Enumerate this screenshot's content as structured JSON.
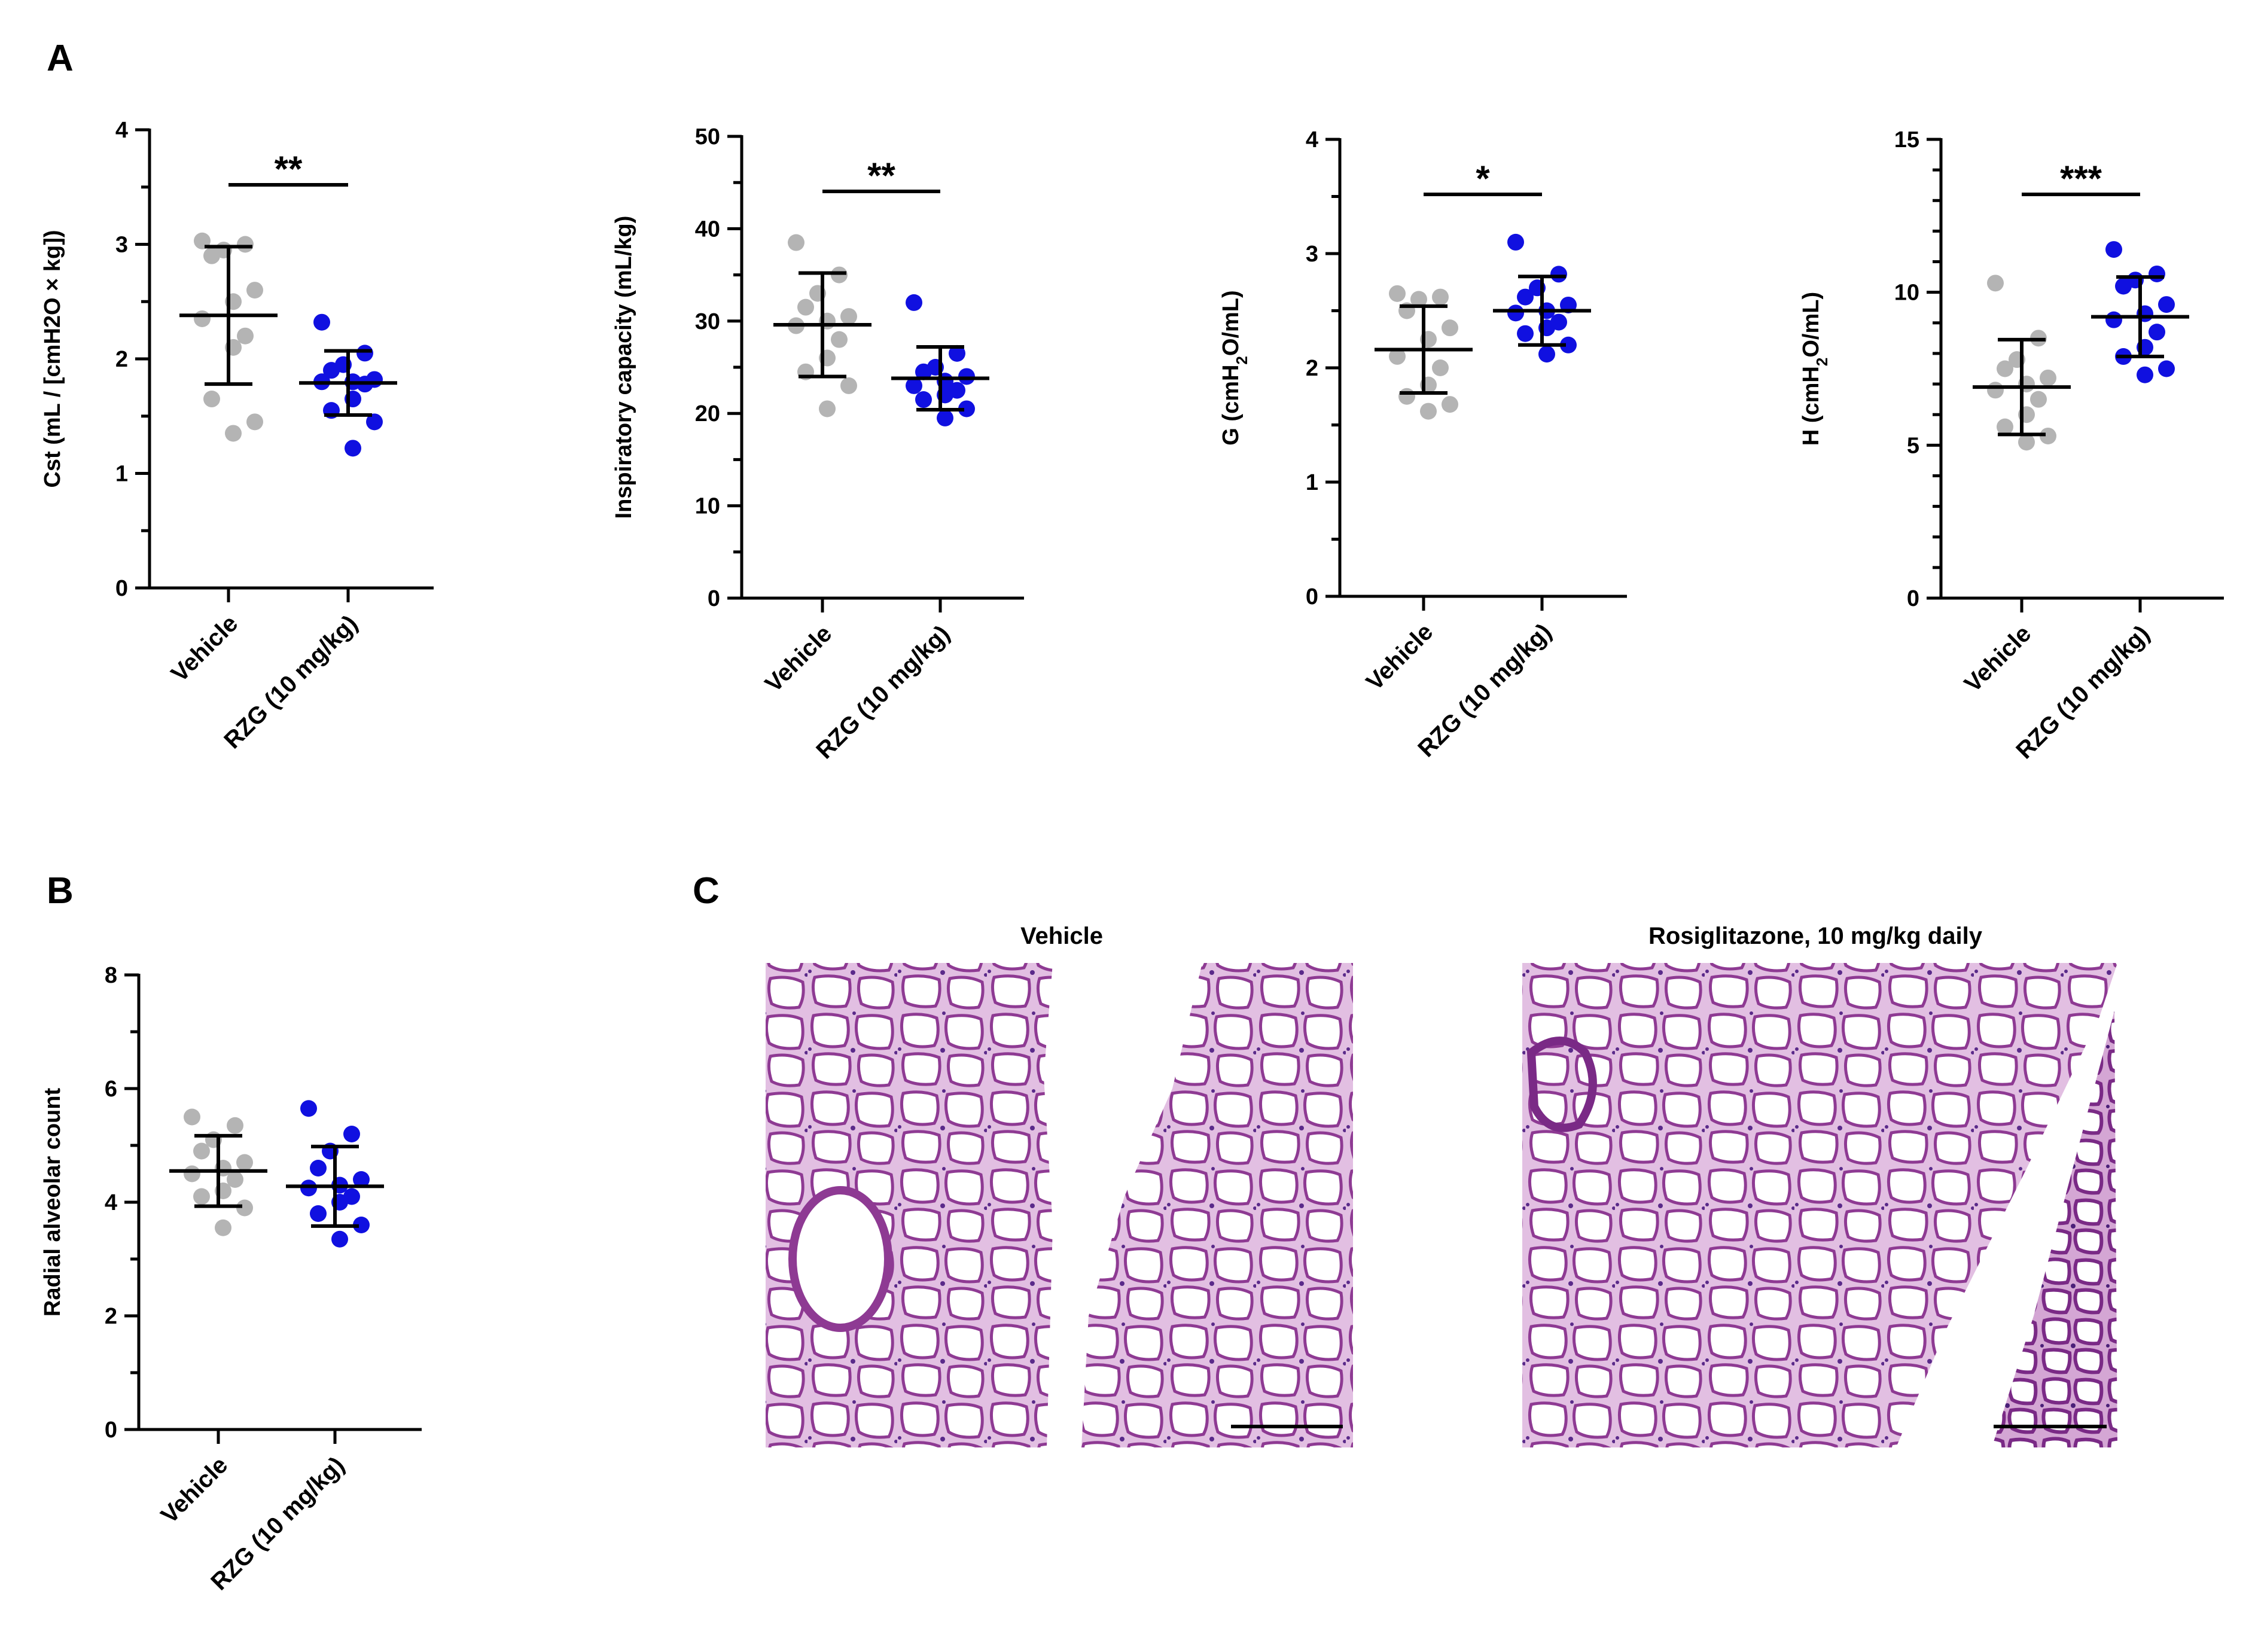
{
  "panels": {
    "A": "A",
    "B": "B",
    "C": "C"
  },
  "colors": {
    "vehicle": "#b4b4b4",
    "rzg": "#1010e0",
    "axis": "#000000"
  },
  "chart_data": [
    {
      "type": "scatter",
      "panel": "A",
      "ylabel": "Cst (mL / [cmH2O × kg])",
      "ylim": [
        0,
        4
      ],
      "yticks": [
        0,
        1,
        2,
        3,
        4
      ],
      "ytick_labels": [
        "0",
        "1",
        "2",
        "3",
        "4"
      ],
      "minor_per_major": 2,
      "categories": [
        "Vehicle",
        "RZG (10 mg/kg)"
      ],
      "significance": "**",
      "series": [
        {
          "name": "Vehicle",
          "mean": 2.38,
          "sd": 0.6,
          "values": [
            3.03,
            3.0,
            2.95,
            2.9,
            2.6,
            2.5,
            2.35,
            2.2,
            2.1,
            1.65,
            1.45,
            1.35
          ]
        },
        {
          "name": "RZG (10 mg/kg)",
          "mean": 1.79,
          "sd": 0.28,
          "values": [
            2.32,
            2.05,
            1.95,
            1.9,
            1.82,
            1.8,
            1.8,
            1.78,
            1.65,
            1.55,
            1.45,
            1.22
          ]
        }
      ]
    },
    {
      "type": "scatter",
      "panel": "A",
      "ylabel": "Inspiratory capacity (mL/kg)",
      "ylim": [
        0,
        50
      ],
      "yticks": [
        0,
        10,
        20,
        30,
        40,
        50
      ],
      "ytick_labels": [
        "0",
        "10",
        "20",
        "30",
        "40",
        "50"
      ],
      "minor_per_major": 2,
      "categories": [
        "Vehicle",
        "RZG (10 mg/kg)"
      ],
      "significance": "**",
      "series": [
        {
          "name": "Vehicle",
          "mean": 29.6,
          "sd": 5.6,
          "values": [
            38.5,
            35.0,
            33.0,
            31.5,
            30.5,
            30.0,
            29.5,
            28.0,
            26.0,
            24.5,
            23.0,
            20.5
          ]
        },
        {
          "name": "RZG (10 mg/kg)",
          "mean": 23.8,
          "sd": 3.4,
          "values": [
            32.0,
            26.5,
            25.0,
            24.5,
            24.0,
            23.5,
            23.0,
            22.5,
            22.0,
            21.5,
            20.5,
            19.5
          ]
        }
      ]
    },
    {
      "type": "scatter",
      "panel": "A",
      "ylabel": "G (cmH2O/mL)",
      "ylabel_parts": [
        "G (cmH",
        "2",
        "O/mL)"
      ],
      "ylim": [
        0,
        4
      ],
      "yticks": [
        0,
        1,
        2,
        3,
        4
      ],
      "ytick_labels": [
        "0",
        "1",
        "2",
        "3",
        "4"
      ],
      "minor_per_major": 2,
      "categories": [
        "Vehicle",
        "RZG (10 mg/kg)"
      ],
      "significance": "*",
      "series": [
        {
          "name": "Vehicle",
          "mean": 2.16,
          "sd": 0.38,
          "values": [
            2.65,
            2.62,
            2.6,
            2.5,
            2.35,
            2.25,
            2.1,
            2.0,
            1.85,
            1.75,
            1.68,
            1.62
          ]
        },
        {
          "name": "RZG (10 mg/kg)",
          "mean": 2.5,
          "sd": 0.3,
          "values": [
            3.1,
            2.82,
            2.7,
            2.62,
            2.55,
            2.5,
            2.48,
            2.4,
            2.35,
            2.3,
            2.2,
            2.12
          ]
        }
      ]
    },
    {
      "type": "scatter",
      "panel": "A",
      "ylabel": "H (cmH2O/mL)",
      "ylabel_parts": [
        "H (cmH",
        "2",
        "O/mL)"
      ],
      "ylim": [
        0,
        15
      ],
      "yticks": [
        0,
        5,
        10,
        15
      ],
      "ytick_labels": [
        "0",
        "5",
        "10",
        "15"
      ],
      "minor_per_major": 5,
      "categories": [
        "Vehicle",
        "RZG (10 mg/kg)"
      ],
      "significance": "***",
      "series": [
        {
          "name": "Vehicle",
          "mean": 6.9,
          "sd": 1.55,
          "values": [
            10.3,
            8.5,
            7.8,
            7.5,
            7.2,
            7.0,
            6.8,
            6.5,
            6.0,
            5.6,
            5.3,
            5.1
          ]
        },
        {
          "name": "RZG (10 mg/kg)",
          "mean": 9.2,
          "sd": 1.3,
          "values": [
            11.4,
            10.6,
            10.4,
            10.2,
            9.6,
            9.3,
            9.1,
            8.7,
            8.2,
            7.9,
            7.5,
            7.3
          ]
        }
      ]
    },
    {
      "type": "scatter",
      "panel": "B",
      "ylabel": "Radial alveolar count",
      "ylim": [
        0,
        8
      ],
      "yticks": [
        0,
        2,
        4,
        6,
        8
      ],
      "ytick_labels": [
        "0",
        "2",
        "4",
        "6",
        "8"
      ],
      "minor_per_major": 2,
      "categories": [
        "Vehicle",
        "RZG (10 mg/kg)"
      ],
      "significance": "",
      "series": [
        {
          "name": "Vehicle",
          "mean": 4.55,
          "sd": 0.62,
          "values": [
            5.5,
            5.35,
            5.1,
            4.9,
            4.7,
            4.6,
            4.5,
            4.4,
            4.2,
            4.1,
            3.9,
            3.55
          ]
        },
        {
          "name": "RZG (10 mg/kg)",
          "mean": 4.28,
          "sd": 0.7,
          "values": [
            5.65,
            5.2,
            4.9,
            4.6,
            4.4,
            4.3,
            4.25,
            4.1,
            4.0,
            3.8,
            3.6,
            3.35
          ]
        }
      ]
    }
  ],
  "micrographs": [
    {
      "title": "Vehicle"
    },
    {
      "title": "Rosiglitazone, 10 mg/kg daily"
    }
  ]
}
